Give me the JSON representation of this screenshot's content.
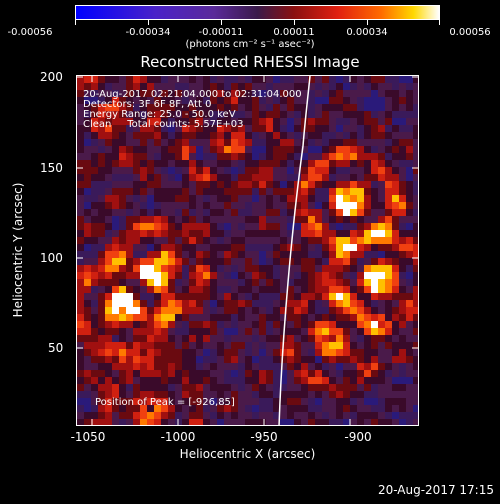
{
  "colorbar": {
    "ticks": [
      "-0.00056",
      "-0.00034",
      "-0.00011",
      "0.00011",
      "0.00034",
      "0.00056"
    ],
    "units": "(photons cm⁻² s⁻¹ asec⁻²)"
  },
  "title": "Reconstructed RHESSI Image",
  "annotations": {
    "time": "20-Aug-2017 02:21:04.000 to 02:31:04.000",
    "detectors": "Detectors: 3F 6F 8F, Att 0",
    "energy": "Energy Range: 25.0 - 50.0 keV",
    "clean": "Clean     Total counts: 5.57E+03",
    "peak": "Position of Peak = [-926,85]"
  },
  "axes": {
    "xlabel": "Heliocentric X (arcsec)",
    "ylabel": "Heliocentric Y (arcsec)",
    "xticks": [
      "-1050",
      "-1000",
      "-950",
      "-900"
    ],
    "yticks": [
      "200",
      "150",
      "100",
      "50"
    ]
  },
  "footer": {
    "timestamp": "20-Aug-2017 17:15"
  }
}
